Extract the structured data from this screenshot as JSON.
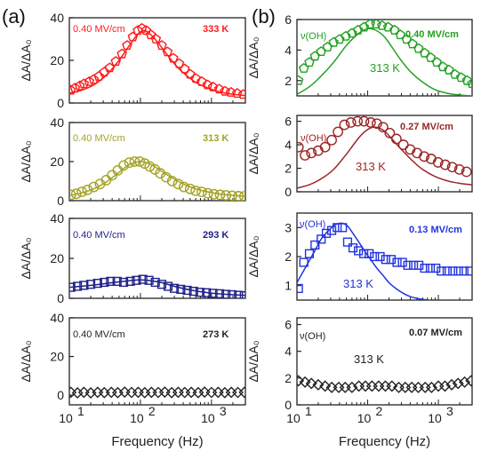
{
  "panel_labels": [
    "(a)",
    "(b)"
  ],
  "chart_data": [
    {
      "type": "scatter",
      "panel": "(a)",
      "field_label": "0.40 MV/cm",
      "temp_label": "333 K",
      "color": "#ff1a1a",
      "marker": "pentagon",
      "xlabel": "",
      "ylabel": "ΔA/ΔA₀",
      "xscale": "log",
      "xlim": [
        10,
        3000
      ],
      "ylim": [
        0,
        40
      ],
      "yticks": [
        0,
        20,
        40
      ],
      "xticks": [],
      "points_x": [
        10.5,
        12,
        14,
        16,
        19,
        22,
        26,
        31,
        37,
        45,
        55,
        65,
        78,
        92,
        105,
        120,
        140,
        165,
        200,
        240,
        290,
        350,
        420,
        500,
        600,
        730,
        880,
        1050,
        1280,
        1550,
        1880,
        2300,
        2800
      ],
      "points_y": [
        6,
        7,
        8,
        9,
        10,
        11,
        12.5,
        14.5,
        16.5,
        19.5,
        23,
        27,
        31,
        34,
        35,
        34,
        32,
        30,
        27,
        24,
        21,
        18.5,
        16,
        13.5,
        11.5,
        10,
        8.5,
        7.5,
        6.5,
        5.5,
        5,
        4.5,
        4
      ],
      "fit_curves": [
        {
          "x": [
            10,
            15,
            22,
            33,
            50,
            70,
            90,
            110,
            130,
            160,
            200,
            260,
            350,
            480,
            650,
            900,
            1300,
            1900,
            3000
          ],
          "y": [
            4.5,
            6,
            8.5,
            13,
            20,
            27,
            32,
            34,
            33,
            30,
            26,
            21,
            16,
            12,
            9,
            7,
            5.2,
            4.2,
            3.5
          ]
        }
      ],
      "curve_label": ""
    },
    {
      "type": "scatter",
      "panel": "(a)",
      "field_label": "0.40 MV/cm",
      "temp_label": "313 K",
      "color": "#a3a325",
      "marker": "circle",
      "xlabel": "",
      "ylabel": "ΔA/ΔA₀",
      "xscale": "log",
      "xlim": [
        10,
        3000
      ],
      "ylim": [
        0,
        40
      ],
      "yticks": [
        0,
        20,
        40
      ],
      "xticks": [],
      "points_x": [
        10.5,
        12.5,
        15,
        18,
        22,
        27,
        33,
        40,
        48,
        58,
        70,
        83,
        98,
        115,
        135,
        160,
        190,
        230,
        280,
        340,
        410,
        500,
        600,
        730,
        890,
        1080,
        1320,
        1600,
        1950,
        2400,
        2900
      ],
      "points_y": [
        3,
        3.5,
        4.5,
        5.5,
        7,
        8.5,
        10.5,
        13,
        15.5,
        18,
        19.5,
        20,
        20,
        19,
        17.5,
        16,
        14,
        12,
        10,
        8.5,
        7,
        6,
        5,
        4.5,
        3.8,
        3.3,
        3,
        2.7,
        2.5,
        2.3,
        2.2
      ],
      "fit_curves": [
        {
          "x": [
            10,
            15,
            22,
            33,
            50,
            70,
            95,
            120,
            150,
            200,
            270,
            380,
            550,
            800,
            1200,
            1800,
            3000
          ],
          "y": [
            2.5,
            4,
            6,
            9.5,
            14.5,
            18.5,
            20,
            19.5,
            18,
            15,
            12,
            9,
            6.5,
            4.8,
            3.6,
            2.8,
            2.2
          ]
        }
      ],
      "curve_label": ""
    },
    {
      "type": "scatter",
      "panel": "(a)",
      "field_label": "0.40 MV/cm",
      "temp_label": "293 K",
      "color": "#22228a",
      "marker": "square",
      "xlabel": "",
      "ylabel": "ΔA/ΔA₀",
      "xscale": "log",
      "xlim": [
        10,
        3000
      ],
      "ylim": [
        0,
        40
      ],
      "yticks": [
        0,
        20,
        40
      ],
      "xticks": [],
      "points_x": [
        10.5,
        13,
        16,
        20,
        25,
        31,
        38,
        47,
        58,
        72,
        88,
        108,
        132,
        162,
        200,
        245,
        300,
        370,
        455,
        560,
        690,
        850,
        1050,
        1300,
        1600,
        1950,
        2400,
        2900
      ],
      "points_y": [
        5.5,
        6,
        6.5,
        7,
        7.5,
        8,
        8.5,
        8.5,
        8,
        8.5,
        9,
        9.5,
        9,
        8,
        7,
        6,
        5,
        4.5,
        4,
        3.5,
        3,
        2.8,
        2.5,
        2.3,
        2,
        1.8,
        1.5,
        1.3
      ],
      "fit_curves": [
        {
          "x": [
            10,
            20,
            40,
            70,
            100,
            140,
            200,
            300,
            500,
            900,
            1600,
            3000
          ],
          "y": [
            5.5,
            6.5,
            7.8,
            8.8,
            9.2,
            8.8,
            7.8,
            6,
            4.2,
            2.8,
            2,
            1.5
          ]
        }
      ],
      "curve_label": ""
    },
    {
      "type": "scatter",
      "panel": "(a)",
      "field_label": "0.40 MV/cm",
      "temp_label": "273 K",
      "color": "#222222",
      "marker": "diamond",
      "xlabel": "Frequency (Hz)",
      "ylabel": "ΔA/ΔA₀",
      "xscale": "log",
      "xlim": [
        10,
        3000
      ],
      "ylim": [
        -5,
        40
      ],
      "yticks": [
        0,
        20,
        40
      ],
      "xticks": [
        "10",
        "10",
        "10"
      ],
      "xtick_exponents": [
        "1",
        "2",
        "3"
      ],
      "points_x": [
        10.5,
        13,
        16,
        20,
        25,
        31,
        39,
        48,
        60,
        75,
        93,
        115,
        143,
        178,
        220,
        275,
        340,
        420,
        520,
        650,
        800,
        1000,
        1240,
        1540,
        1900,
        2350,
        2900
      ],
      "points_y": [
        1.5,
        1.2,
        1.5,
        1.2,
        1.5,
        1.3,
        1.5,
        1.3,
        1.6,
        1.4,
        1.5,
        1.3,
        1.5,
        1.4,
        1.6,
        1.3,
        1.5,
        1.4,
        1.5,
        1.3,
        1.6,
        1.4,
        1.5,
        1.3,
        1.5,
        1.4,
        1.5
      ],
      "fit_curves": [],
      "curve_label": ""
    },
    {
      "type": "scatter",
      "panel": "(b)",
      "field_label": "0.40 MV/cm",
      "temp_label": "",
      "species_label": "ν(OH)",
      "color": "#22a022",
      "marker": "pentagon",
      "xlabel": "",
      "ylabel": "ΔA/ΔA₀",
      "xscale": "log",
      "xlim": [
        10,
        3000
      ],
      "ylim": [
        1,
        6
      ],
      "yticks": [
        2,
        4,
        6
      ],
      "xticks": [],
      "points_x": [
        10.5,
        12.5,
        15,
        18,
        22,
        27,
        33,
        40,
        49,
        60,
        73,
        89,
        108,
        132,
        160,
        195,
        240,
        290,
        355,
        430,
        525,
        640,
        780,
        950,
        1160,
        1410,
        1720,
        2100,
        2550,
        3000
      ],
      "points_y": [
        2,
        2.8,
        3.2,
        3.6,
        3.9,
        4.2,
        4.5,
        4.7,
        4.9,
        5.1,
        5.3,
        5.5,
        5.7,
        5.7,
        5.6,
        5.5,
        5.3,
        5,
        4.7,
        4.4,
        4.1,
        3.8,
        3.5,
        3.2,
        2.9,
        2.7,
        2.4,
        2.2,
        2,
        1.8
      ],
      "fit_curves": [
        {
          "x": [
            10,
            15,
            22,
            33,
            50,
            75,
            100,
            130,
            170,
            220,
            300,
            420,
            600,
            900,
            1400,
            2100,
            3000
          ],
          "y": [
            1.1,
            1.6,
            2.3,
            3.2,
            4.3,
            5.1,
            5.4,
            5.3,
            4.9,
            4.2,
            3.3,
            2.5,
            1.9,
            1.4,
            1.15,
            1.05,
            1
          ]
        }
      ],
      "curve_label": "313 K"
    },
    {
      "type": "scatter",
      "panel": "(b)",
      "field_label": "0.27 MV/cm",
      "temp_label": "",
      "species_label": "ν(OH)",
      "color": "#9b2525",
      "marker": "circle",
      "xlabel": "",
      "ylabel": "ΔA/ΔA₀",
      "xscale": "log",
      "xlim": [
        10,
        3000
      ],
      "ylim": [
        0,
        6.5
      ],
      "yticks": [
        0,
        2,
        4,
        6
      ],
      "xticks": [],
      "points_x": [
        10.5,
        13,
        16,
        20,
        25,
        31,
        38,
        47,
        58,
        72,
        89,
        110,
        135,
        165,
        205,
        255,
        320,
        400,
        500,
        630,
        790,
        990,
        1250,
        1570,
        1980,
        2500
      ],
      "points_y": [
        3.8,
        3.1,
        3.3,
        3.5,
        3.8,
        4.4,
        5.1,
        5.7,
        5.9,
        6,
        6,
        5.9,
        5.8,
        5.5,
        5,
        4.5,
        4,
        3.6,
        3.3,
        3,
        2.8,
        2.5,
        2.3,
        2.1,
        1.9,
        1.7
      ],
      "fit_curves": [
        {
          "x": [
            10,
            15,
            22,
            33,
            50,
            75,
            100,
            130,
            170,
            220,
            300,
            420,
            600,
            900,
            1400,
            2100,
            3000
          ],
          "y": [
            0.3,
            0.6,
            1.1,
            1.9,
            3.2,
            4.6,
            5.3,
            5.5,
            5.2,
            4.5,
            3.6,
            2.7,
            1.9,
            1.3,
            0.9,
            0.7,
            0.6
          ]
        }
      ],
      "curve_label": "313 K"
    },
    {
      "type": "scatter",
      "panel": "(b)",
      "field_label": "0.13 MV/cm",
      "temp_label": "",
      "species_label": "ν(OH)",
      "color": "#2233dd",
      "marker": "square",
      "xlabel": "",
      "ylabel": "ΔA/ΔA₀",
      "xscale": "log",
      "xlim": [
        10,
        3000
      ],
      "ylim": [
        0.5,
        3.5
      ],
      "yticks": [
        1,
        2,
        3
      ],
      "xticks": [],
      "points_x": [
        10.5,
        12.5,
        15,
        18,
        22,
        26,
        31,
        37,
        44,
        52,
        62,
        74,
        88,
        105,
        125,
        150,
        180,
        215,
        260,
        310,
        370,
        445,
        530,
        640,
        770,
        920,
        1100,
        1330,
        1600,
        1920,
        2300,
        2800
      ],
      "points_y": [
        0.9,
        1.8,
        2.1,
        2.4,
        2.6,
        2.8,
        2.9,
        3,
        3,
        2.5,
        2.3,
        2.2,
        2.1,
        2.1,
        2,
        2,
        1.9,
        1.9,
        1.8,
        1.8,
        1.7,
        1.7,
        1.7,
        1.6,
        1.6,
        1.6,
        1.5,
        1.5,
        1.5,
        1.5,
        1.5,
        1.5
      ],
      "fit_curves": [
        {
          "x": [
            10,
            13,
            17,
            22,
            28,
            35,
            43,
            52,
            62,
            75,
            90,
            110,
            135,
            165,
            200,
            250,
            310,
            400,
            520,
            700
          ],
          "y": [
            1.1,
            1.6,
            2.1,
            2.6,
            2.9,
            3.1,
            3.15,
            3.05,
            2.8,
            2.5,
            2.2,
            1.9,
            1.6,
            1.35,
            1.1,
            0.9,
            0.75,
            0.62,
            0.55,
            0.5
          ]
        }
      ],
      "curve_label": "313 K"
    },
    {
      "type": "scatter",
      "panel": "(b)",
      "field_label": "0.07 MV/cm",
      "temp_label": "",
      "species_label": "ν(OH)",
      "color": "#222222",
      "marker": "diamond",
      "xlabel": "Frequency (Hz)",
      "ylabel": "ΔA/ΔA₀",
      "xscale": "log",
      "xlim": [
        10,
        3000
      ],
      "ylim": [
        0,
        6.5
      ],
      "yticks": [
        0,
        2,
        4,
        6
      ],
      "xticks": [
        "10",
        "10",
        "10"
      ],
      "xtick_exponents": [
        "1",
        "2",
        "3"
      ],
      "points_x": [
        10.5,
        13,
        16,
        20,
        25,
        31,
        39,
        48,
        60,
        75,
        93,
        115,
        143,
        178,
        220,
        275,
        340,
        420,
        520,
        650,
        800,
        1000,
        1240,
        1540,
        1900,
        2350,
        2900
      ],
      "points_y": [
        1.8,
        1.7,
        1.6,
        1.5,
        1.4,
        1.3,
        1.3,
        1.3,
        1.3,
        1.4,
        1.4,
        1.4,
        1.4,
        1.4,
        1.4,
        1.3,
        1.3,
        1.3,
        1.3,
        1.3,
        1.3,
        1.4,
        1.4,
        1.5,
        1.6,
        1.7,
        1.8
      ],
      "fit_curves": [],
      "curve_label": "313 K"
    }
  ]
}
